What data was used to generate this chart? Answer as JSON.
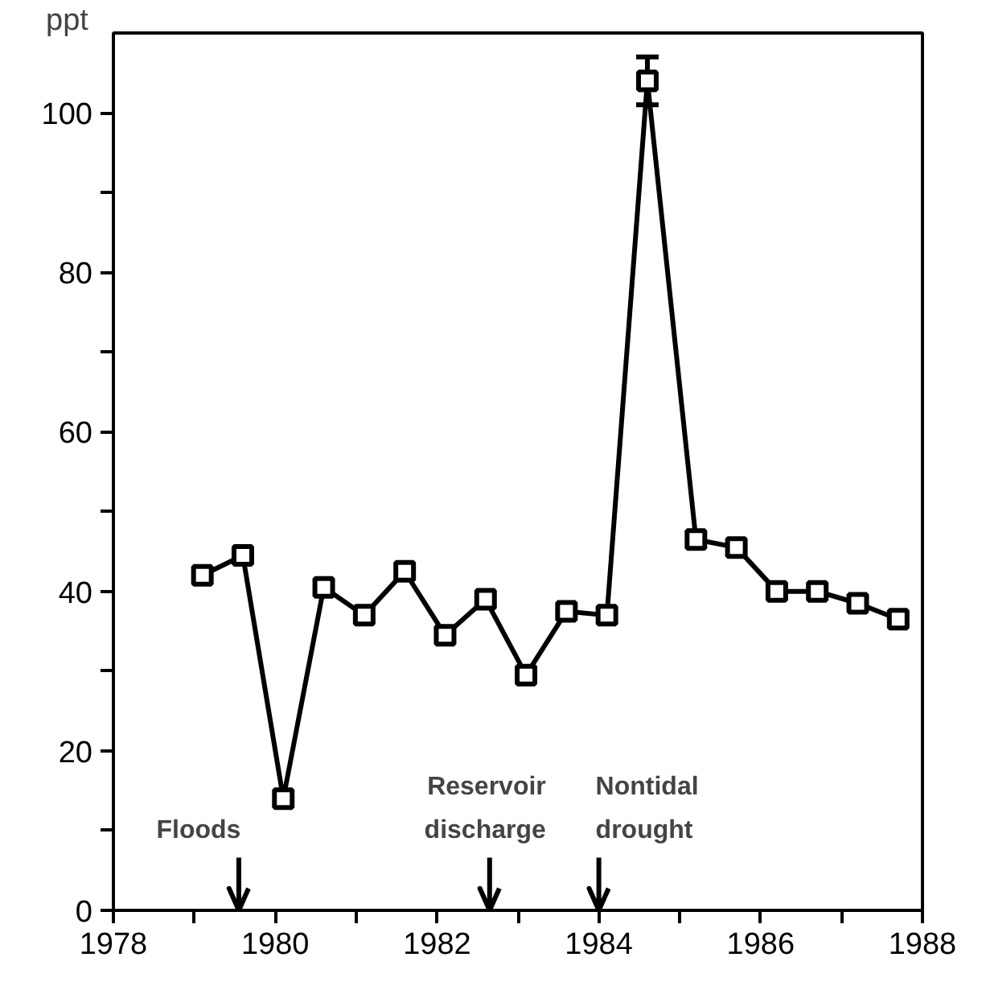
{
  "chart_data": {
    "type": "line",
    "ylabel": "ppt",
    "x": [
      1979.1,
      1979.6,
      1980.1,
      1980.6,
      1981.1,
      1981.6,
      1982.1,
      1982.6,
      1983.1,
      1983.6,
      1984.1,
      1984.6,
      1985.2,
      1985.7,
      1986.2,
      1986.7,
      1987.2,
      1987.7
    ],
    "series": [
      {
        "color": "#000000",
        "values": [
          42,
          44.5,
          14,
          40.5,
          37,
          42.5,
          34.5,
          39,
          29.5,
          37.5,
          37,
          104,
          46.5,
          45.5,
          40,
          40,
          38.5,
          36.5
        ],
        "errors": [
          null,
          null,
          null,
          null,
          null,
          null,
          null,
          null,
          null,
          null,
          null,
          3,
          null,
          null,
          null,
          null,
          null,
          null
        ]
      }
    ],
    "xlim": [
      1978,
      1988
    ],
    "xticks": [
      1978,
      {
        "value": 1979,
        "label": null
      },
      1980,
      {
        "value": 1981,
        "label": null
      },
      1982,
      {
        "value": 1983,
        "label": null
      },
      1984,
      {
        "value": 1985,
        "label": null
      },
      1986,
      {
        "value": 1987,
        "label": null
      },
      1988
    ],
    "ylim": [
      0,
      110
    ],
    "yticks": [
      0,
      {
        "value": 10,
        "label": null
      },
      20,
      {
        "value": 30,
        "label": null
      },
      40,
      {
        "value": 50,
        "label": null
      },
      60,
      {
        "value": 70,
        "label": null
      },
      80,
      {
        "value": 90,
        "label": null
      },
      100
    ],
    "ref_lines": [
      {
        "axis": "x",
        "value": 1979.55,
        "label": "Floods"
      },
      {
        "axis": "x",
        "value": 1982.65,
        "label": "Reservoir\ndischarge"
      },
      {
        "axis": "x",
        "value": 1984.0,
        "label": "Nontidal\ndrought"
      }
    ],
    "marker": "square",
    "line_style": "solid",
    "grid": false
  }
}
